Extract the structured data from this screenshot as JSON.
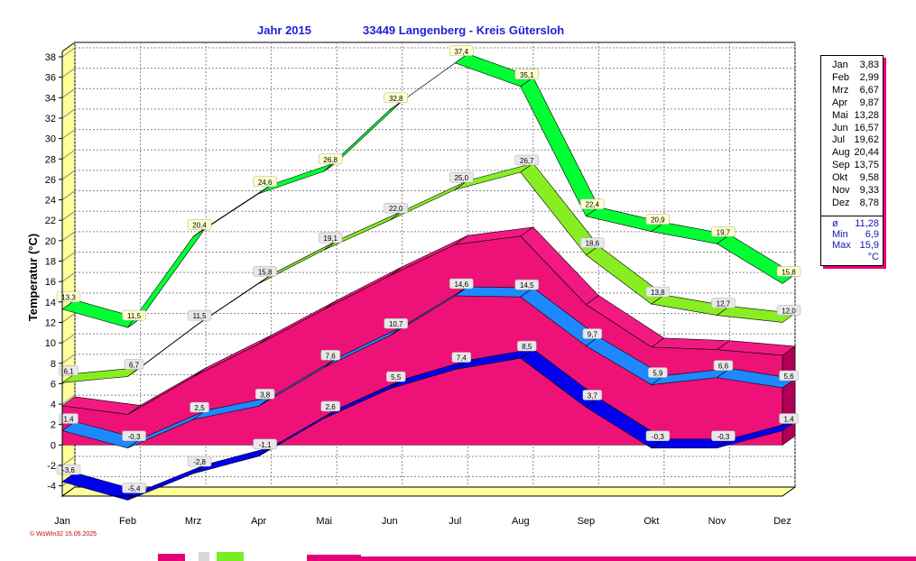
{
  "chart_data": {
    "type": "line",
    "title": "Jahr  2015",
    "subtitle": "33449 Langenberg - Kreis Gütersloh",
    "ylabel": "Temperatur  (°C)",
    "xlabel": "",
    "ylim": [
      -5,
      38
    ],
    "yticks": [
      -4,
      -2,
      0,
      2,
      4,
      6,
      8,
      10,
      12,
      14,
      16,
      18,
      20,
      22,
      24,
      26,
      28,
      30,
      32,
      34,
      36,
      38
    ],
    "grid": true,
    "categories": [
      "Jan",
      "Feb",
      "Mrz",
      "Apr",
      "Mai",
      "Jun",
      "Jul",
      "Aug",
      "Sep",
      "Okt",
      "Nov",
      "Dez"
    ],
    "series": [
      {
        "values": [
          13.3,
          11.5,
          20.4,
          24.6,
          26.8,
          32.8,
          37.4,
          35.1,
          22.4,
          20.9,
          19.7,
          15.8
        ],
        "labels": [
          "13,3",
          "11,5",
          "20,4",
          "24,6",
          "26,8",
          "32,8",
          "37,4",
          "35,1",
          "22,4",
          "20,9",
          "19,7",
          "15,8"
        ],
        "color": "#00ff33"
      },
      {
        "values": [
          6.1,
          6.7,
          11.5,
          15.8,
          19.1,
          22.0,
          25.0,
          26.7,
          18.6,
          13.8,
          12.7,
          12.0
        ],
        "labels": [
          "6,1",
          "6,7",
          "11,5",
          "15,8",
          "19,1",
          "22,0",
          "25,0",
          "26,7",
          "18,6",
          "13,8",
          "12,7",
          "12,0"
        ],
        "color": "#88ee22"
      },
      {
        "values": [
          3.83,
          2.99,
          6.67,
          9.87,
          13.28,
          16.57,
          19.62,
          20.44,
          13.75,
          9.58,
          9.33,
          8.78
        ],
        "color": "#ee1177"
      },
      {
        "values": [
          1.4,
          -0.3,
          2.5,
          3.8,
          7.6,
          10.7,
          14.6,
          14.5,
          9.7,
          5.9,
          6.6,
          5.6
        ],
        "labels": [
          "1,4",
          "-0,3",
          "2,5",
          "3,8",
          "7,6",
          "10,7",
          "14,6",
          "14,5",
          "9,7",
          "5,9",
          "6,6",
          "5,6"
        ],
        "color": "#1e88ff"
      },
      {
        "values": [
          -3.6,
          -5.4,
          -2.8,
          -1.1,
          2.6,
          5.5,
          7.4,
          8.5,
          3.7,
          -0.3,
          -0.3,
          1.4
        ],
        "labels": [
          "-3,6",
          "-5,4",
          "-2,8",
          "-1,1",
          "2,6",
          "5,5",
          "7,4",
          "8,5",
          "3,7",
          "-0,3",
          "-0,3",
          "1,4"
        ],
        "color": "#0000ee"
      }
    ],
    "legend": {
      "placement": "right",
      "rows": [
        {
          "m": "Jan",
          "v": "3,83"
        },
        {
          "m": "Feb",
          "v": "2,99"
        },
        {
          "m": "Mrz",
          "v": "6,67"
        },
        {
          "m": "Apr",
          "v": "9,87"
        },
        {
          "m": "Mai",
          "v": "13,28"
        },
        {
          "m": "Jun",
          "v": "16,57"
        },
        {
          "m": "Jul",
          "v": "19,62"
        },
        {
          "m": "Aug",
          "v": "20,44"
        },
        {
          "m": "Sep",
          "v": "13,75"
        },
        {
          "m": "Okt",
          "v": "9,58"
        },
        {
          "m": "Nov",
          "v": "9,33"
        },
        {
          "m": "Dez",
          "v": "8,78"
        }
      ],
      "stats": [
        {
          "m": "ø",
          "v": "11,28"
        },
        {
          "m": "Min",
          "v": "6,9"
        },
        {
          "m": "Max",
          "v": "15,9"
        },
        {
          "m": "",
          "v": "°C"
        }
      ]
    }
  },
  "watermark": "© WsWin32  15.05.2025"
}
